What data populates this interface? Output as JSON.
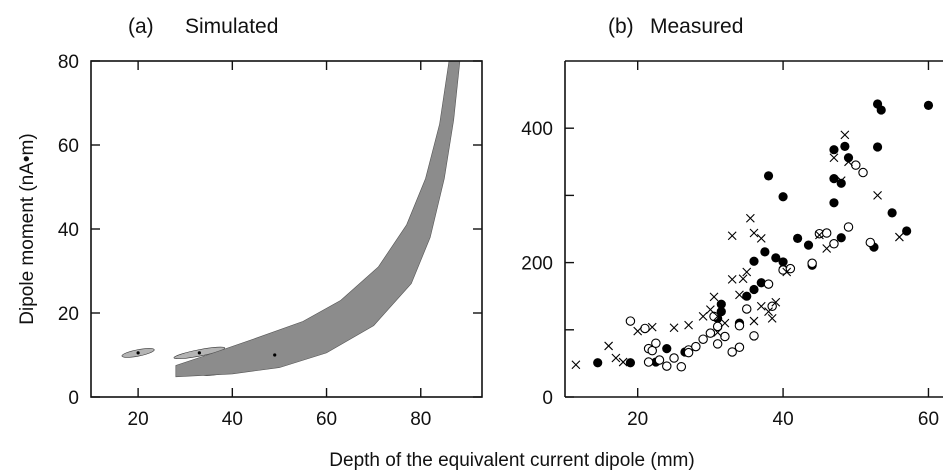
{
  "figure": {
    "shared_xlabel": "Depth of the equivalent current dipole (mm)"
  },
  "chart_data": [
    {
      "type": "area",
      "panel_label": "(a)",
      "title": "Simulated",
      "xlabel": "",
      "ylabel": "Dipole moment (nA•m)",
      "xlim": [
        10,
        93
      ],
      "ylim": [
        0,
        80
      ],
      "xticks": [
        20,
        40,
        60,
        80
      ],
      "yticks": [
        0,
        20,
        40,
        60,
        80
      ],
      "colors": {
        "light": "#8c8c8c",
        "medium": "#b4b4b4",
        "dark": "#262626"
      },
      "regions": [
        {
          "shade": "medium",
          "center": [
            20,
            10.5
          ],
          "x_extent": [
            17,
            24
          ]
        },
        {
          "shade": "medium",
          "center": [
            33,
            10.5
          ],
          "x_extent": [
            27,
            38
          ]
        },
        {
          "shade": "dark",
          "center": [
            47,
            10
          ],
          "x_extent": [
            29,
            57
          ]
        },
        {
          "shade": "light",
          "lower_boundary": [
            [
              28,
              4.8
            ],
            [
              40,
              5.5
            ],
            [
              50,
              7
            ],
            [
              60,
              10.5
            ],
            [
              70,
              17
            ],
            [
              78,
              27
            ],
            [
              82,
              38
            ],
            [
              85,
              52
            ],
            [
              87,
              66
            ],
            [
              88.3,
              80
            ]
          ],
          "upper_boundary": [
            [
              28,
              7.5
            ],
            [
              36,
              10.5
            ],
            [
              45,
              14
            ],
            [
              55,
              18
            ],
            [
              63,
              23
            ],
            [
              71,
              31
            ],
            [
              77,
              41
            ],
            [
              81,
              52
            ],
            [
              84,
              65
            ],
            [
              86,
              80
            ]
          ]
        }
      ],
      "markers": [
        {
          "x": 20,
          "y": 10.5
        },
        {
          "x": 33,
          "y": 10.5
        },
        {
          "x": 49,
          "y": 10
        }
      ]
    },
    {
      "type": "scatter",
      "panel_label": "(b)",
      "title": "Measured",
      "xlabel": "",
      "ylabel": "",
      "xlim": [
        10,
        62
      ],
      "ylim": [
        0,
        500
      ],
      "xticks": [
        20,
        40,
        60
      ],
      "yticks": [
        0,
        200,
        400
      ],
      "series": [
        {
          "marker": "filled-circle",
          "points": [
            [
              14.5,
              51
            ],
            [
              19,
              51
            ],
            [
              22.5,
              52
            ],
            [
              24,
              72
            ],
            [
              26.5,
              67
            ],
            [
              31,
              117
            ],
            [
              31.5,
              138
            ],
            [
              31.5,
              127
            ],
            [
              34,
              110
            ],
            [
              35,
              150
            ],
            [
              36,
              160
            ],
            [
              37.5,
              216
            ],
            [
              38,
              329
            ],
            [
              39,
              207
            ],
            [
              40,
              298
            ],
            [
              40,
              201
            ],
            [
              42,
              236
            ],
            [
              43.5,
              226
            ],
            [
              44,
              196
            ],
            [
              47,
              368
            ],
            [
              47,
              325
            ],
            [
              47,
              289
            ],
            [
              48,
              318
            ],
            [
              48,
              237
            ],
            [
              48.5,
              373
            ],
            [
              49,
              356
            ],
            [
              52.5,
              223
            ],
            [
              53,
              436
            ],
            [
              53,
              372
            ],
            [
              53.5,
              427
            ],
            [
              55,
              274
            ],
            [
              57,
              247
            ],
            [
              60,
              434
            ],
            [
              37,
              170
            ],
            [
              36,
              202
            ]
          ]
        },
        {
          "marker": "open-circle",
          "points": [
            [
              19,
              113
            ],
            [
              21,
              102
            ],
            [
              21.5,
              72
            ],
            [
              22,
              69
            ],
            [
              22.5,
              80
            ],
            [
              21.5,
              52
            ],
            [
              23,
              55
            ],
            [
              24,
              46
            ],
            [
              25,
              58
            ],
            [
              26,
              45
            ],
            [
              27,
              70
            ],
            [
              28,
              75
            ],
            [
              29,
              86
            ],
            [
              30,
              95
            ],
            [
              30.5,
              120
            ],
            [
              31,
              79
            ],
            [
              32,
              90
            ],
            [
              33,
              67
            ],
            [
              34,
              106
            ],
            [
              35,
              131
            ],
            [
              36,
              91
            ],
            [
              38,
              168
            ],
            [
              38.5,
              135
            ],
            [
              40,
              189
            ],
            [
              41,
              191
            ],
            [
              44,
              199
            ],
            [
              45,
              243
            ],
            [
              46,
              244
            ],
            [
              47,
              228
            ],
            [
              49,
              253
            ],
            [
              50,
              345
            ],
            [
              51,
              334
            ],
            [
              52,
              230
            ],
            [
              34,
              74
            ],
            [
              31,
              105
            ],
            [
              27,
              66
            ]
          ]
        },
        {
          "marker": "cross",
          "points": [
            [
              11.5,
              48
            ],
            [
              16,
              76
            ],
            [
              17,
              58
            ],
            [
              18,
              52
            ],
            [
              20,
              98
            ],
            [
              22,
              104
            ],
            [
              25,
              103
            ],
            [
              27,
              107
            ],
            [
              29,
              120
            ],
            [
              30,
              130
            ],
            [
              30.5,
              149
            ],
            [
              31,
              96
            ],
            [
              31.5,
              135
            ],
            [
              32,
              110
            ],
            [
              33,
              240
            ],
            [
              34,
              152
            ],
            [
              34.5,
              176
            ],
            [
              35,
              186
            ],
            [
              35.5,
              266
            ],
            [
              36,
              244
            ],
            [
              36,
              113
            ],
            [
              37,
              135
            ],
            [
              37,
              236
            ],
            [
              38,
              127
            ],
            [
              38.5,
              117
            ],
            [
              39,
              141
            ],
            [
              40,
              198
            ],
            [
              40.5,
              186
            ],
            [
              45,
              241
            ],
            [
              46,
              221
            ],
            [
              47,
              356
            ],
            [
              48,
              322
            ],
            [
              48.5,
              390
            ],
            [
              49,
              350
            ],
            [
              53,
              300
            ],
            [
              56,
              238
            ],
            [
              31,
              120
            ],
            [
              33,
              175
            ]
          ]
        }
      ]
    }
  ]
}
